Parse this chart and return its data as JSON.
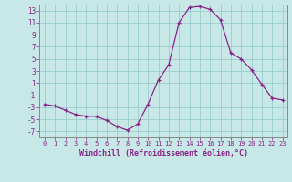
{
  "x": [
    0,
    1,
    2,
    3,
    4,
    5,
    6,
    7,
    8,
    9,
    10,
    11,
    12,
    13,
    14,
    15,
    16,
    17,
    18,
    19,
    20,
    21,
    22,
    23
  ],
  "y": [
    -2.5,
    -2.8,
    -3.5,
    -4.2,
    -4.5,
    -4.5,
    -5.2,
    -6.2,
    -6.8,
    -5.8,
    -2.5,
    1.5,
    4.0,
    11.0,
    13.5,
    13.7,
    13.2,
    11.5,
    6.0,
    5.0,
    3.2,
    0.8,
    -1.5,
    -1.8
  ],
  "xlabel": "Windchill (Refroidissement éolien,°C)",
  "ylim": [
    -8,
    14
  ],
  "xlim": [
    -0.5,
    23.5
  ],
  "yticks": [
    -7,
    -5,
    -3,
    -1,
    1,
    3,
    5,
    7,
    9,
    11,
    13
  ],
  "xticks": [
    0,
    1,
    2,
    3,
    4,
    5,
    6,
    7,
    8,
    9,
    10,
    11,
    12,
    13,
    14,
    15,
    16,
    17,
    18,
    19,
    20,
    21,
    22,
    23
  ],
  "line_color": "#882288",
  "marker_color": "#882288",
  "bg_color": "#c8e8e8",
  "grid_color": "#99cccc",
  "tick_label_color": "#882288",
  "xlabel_color": "#882288",
  "border_color": "#888888"
}
